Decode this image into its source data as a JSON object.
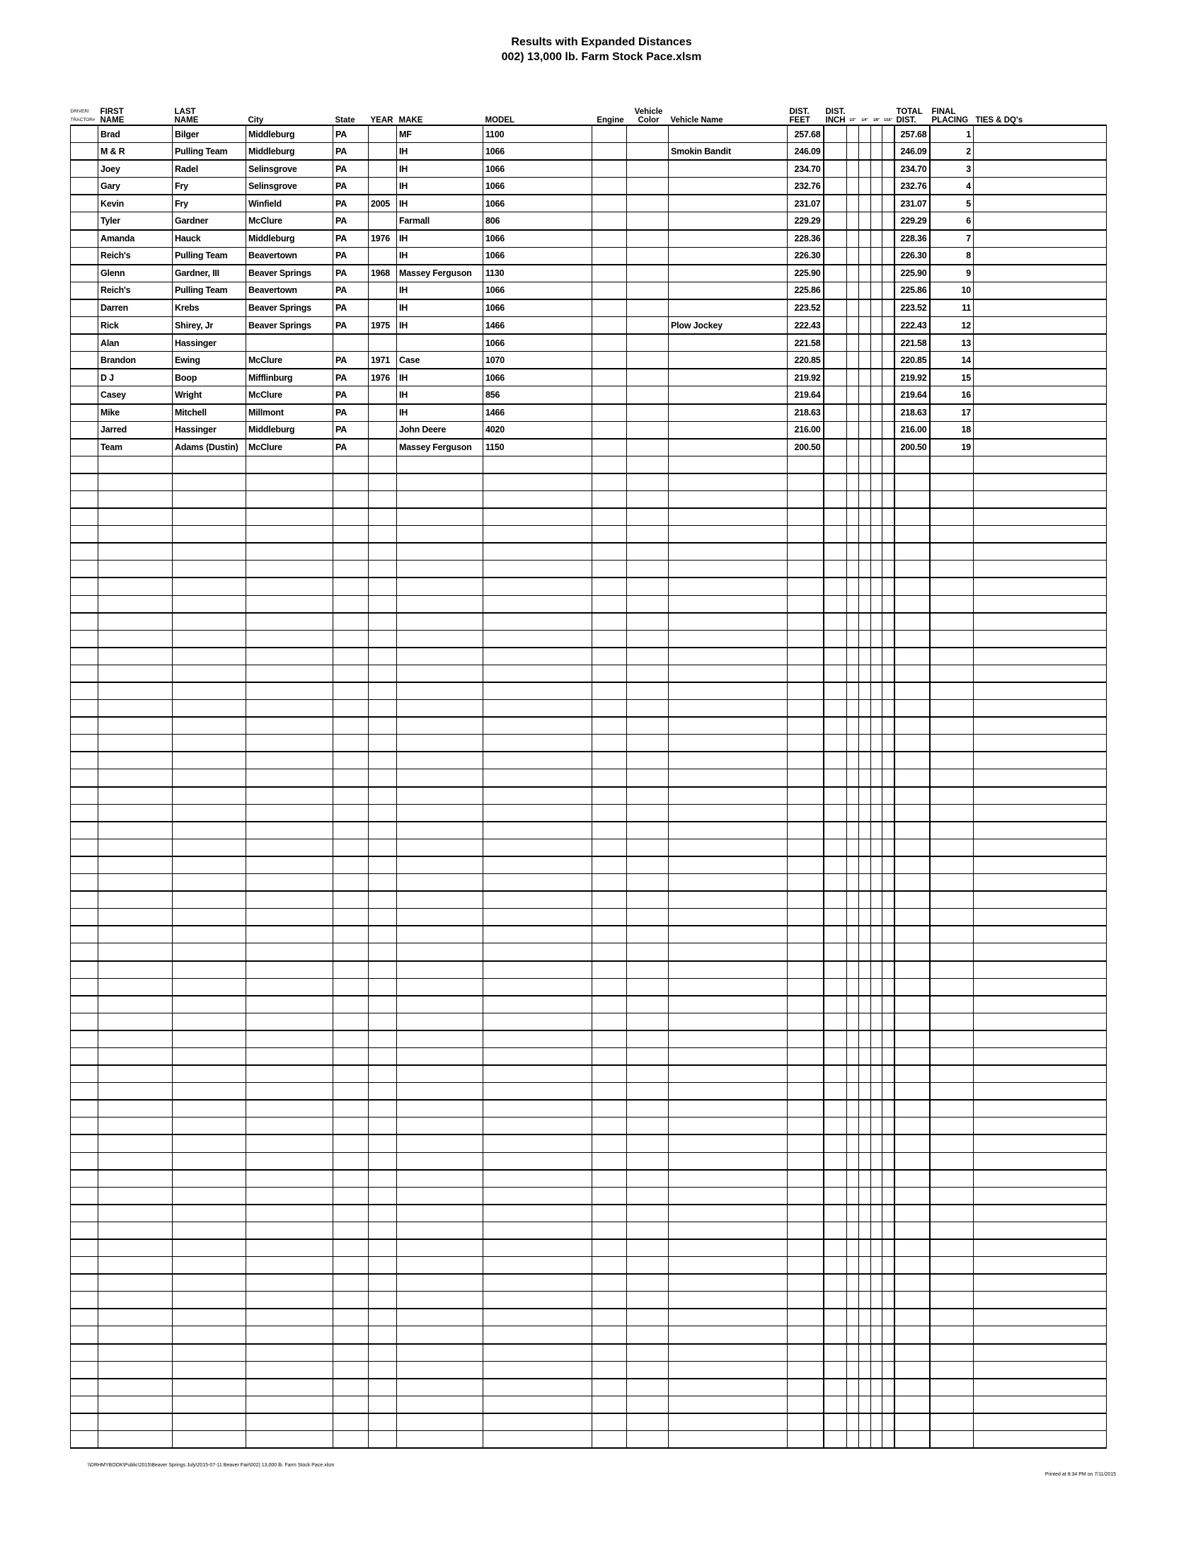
{
  "title": "Results with Expanded Distances",
  "subtitle": "002) 13,000 lb. Farm Stock Pace.xlsm",
  "headers": {
    "driver_line1": "DRIVER/",
    "driver_line2": "TRACTOR#",
    "first_line1": "FIRST",
    "first_line2": "NAME",
    "last_line1": "LAST",
    "last_line2": "NAME",
    "city": "City",
    "state": "State",
    "year": "YEAR",
    "make": "MAKE",
    "model": "MODEL",
    "engine": "Engine",
    "color_line1": "Vehicle",
    "color_line2": "Color",
    "vehicle_name": "Vehicle Name",
    "feet_line1": "DIST.",
    "feet_line2": "FEET",
    "inch_line1": "DIST.",
    "inch_line2": "INCH",
    "half": "1/2\"",
    "quarter": "1/4\"",
    "eighth": "1/8\"",
    "sixteenth": "1/16\"",
    "total_line1": "TOTAL",
    "total_line2": "DIST.",
    "placing_line1": "FINAL",
    "placing_line2": "PLACING",
    "ties": "TIES & DQ's"
  },
  "rows": [
    {
      "first": "Brad",
      "last": "Bilger",
      "city": "Middleburg",
      "state": "PA",
      "year": "",
      "make": "MF",
      "model": "1100",
      "vehicle_name": "",
      "feet": "257.68",
      "total": "257.68",
      "placing": "1"
    },
    {
      "first": "M & R",
      "last": "Pulling Team",
      "city": "Middleburg",
      "state": "PA",
      "year": "",
      "make": "IH",
      "model": "1066",
      "vehicle_name": "Smokin Bandit",
      "feet": "246.09",
      "total": "246.09",
      "placing": "2"
    },
    {
      "first": "Joey",
      "last": "Radel",
      "city": "Selinsgrove",
      "state": "PA",
      "year": "",
      "make": "IH",
      "model": "1066",
      "vehicle_name": "",
      "feet": "234.70",
      "total": "234.70",
      "placing": "3"
    },
    {
      "first": "Gary",
      "last": "Fry",
      "city": "Selinsgrove",
      "state": "PA",
      "year": "",
      "make": "IH",
      "model": "1066",
      "vehicle_name": "",
      "feet": "232.76",
      "total": "232.76",
      "placing": "4"
    },
    {
      "first": "Kevin",
      "last": "Fry",
      "city": "Winfield",
      "state": "PA",
      "year": "2005",
      "make": "IH",
      "model": "1066",
      "vehicle_name": "",
      "feet": "231.07",
      "total": "231.07",
      "placing": "5"
    },
    {
      "first": "Tyler",
      "last": "Gardner",
      "city": "McClure",
      "state": "PA",
      "year": "",
      "make": "Farmall",
      "model": "806",
      "vehicle_name": "",
      "feet": "229.29",
      "total": "229.29",
      "placing": "6"
    },
    {
      "first": "Amanda",
      "last": "Hauck",
      "city": "Middleburg",
      "state": "PA",
      "year": "1976",
      "make": "IH",
      "model": "1066",
      "vehicle_name": "",
      "feet": "228.36",
      "total": "228.36",
      "placing": "7"
    },
    {
      "first": "Reich's",
      "last": "Pulling Team",
      "city": "Beavertown",
      "state": "PA",
      "year": "",
      "make": "IH",
      "model": "1066",
      "vehicle_name": "",
      "feet": "226.30",
      "total": "226.30",
      "placing": "8"
    },
    {
      "first": "Glenn",
      "last": "Gardner, III",
      "city": "Beaver Springs",
      "state": "PA",
      "year": "1968",
      "make": "Massey Ferguson",
      "model": "1130",
      "vehicle_name": "",
      "feet": "225.90",
      "total": "225.90",
      "placing": "9"
    },
    {
      "first": "Reich's",
      "last": "Pulling Team",
      "city": "Beavertown",
      "state": "PA",
      "year": "",
      "make": "IH",
      "model": "1066",
      "vehicle_name": "",
      "feet": "225.86",
      "total": "225.86",
      "placing": "10"
    },
    {
      "first": "Darren",
      "last": "Krebs",
      "city": "Beaver Springs",
      "state": "PA",
      "year": "",
      "make": "IH",
      "model": "1066",
      "vehicle_name": "",
      "feet": "223.52",
      "total": "223.52",
      "placing": "11"
    },
    {
      "first": "Rick",
      "last": "Shirey, Jr",
      "city": "Beaver Springs",
      "state": "PA",
      "year": "1975",
      "make": "IH",
      "model": "1466",
      "vehicle_name": "Plow Jockey",
      "feet": "222.43",
      "total": "222.43",
      "placing": "12"
    },
    {
      "first": "Alan",
      "last": "Hassinger",
      "city": "",
      "state": "",
      "year": "",
      "make": "",
      "model": "1066",
      "vehicle_name": "",
      "feet": "221.58",
      "total": "221.58",
      "placing": "13"
    },
    {
      "first": "Brandon",
      "last": "Ewing",
      "city": "McClure",
      "state": "PA",
      "year": "1971",
      "make": "Case",
      "model": "1070",
      "vehicle_name": "",
      "feet": "220.85",
      "total": "220.85",
      "placing": "14"
    },
    {
      "first": "D J",
      "last": "Boop",
      "city": "Mifflinburg",
      "state": "PA",
      "year": "1976",
      "make": "IH",
      "model": "1066",
      "vehicle_name": "",
      "feet": "219.92",
      "total": "219.92",
      "placing": "15"
    },
    {
      "first": "Casey",
      "last": "Wright",
      "city": "McClure",
      "state": "PA",
      "year": "",
      "make": "IH",
      "model": "856",
      "vehicle_name": "",
      "feet": "219.64",
      "total": "219.64",
      "placing": "16"
    },
    {
      "first": "Mike",
      "last": "Mitchell",
      "city": "Millmont",
      "state": "PA",
      "year": "",
      "make": "IH",
      "model": "1466",
      "vehicle_name": "",
      "feet": "218.63",
      "total": "218.63",
      "placing": "17"
    },
    {
      "first": "Jarred",
      "last": "Hassinger",
      "city": "Middleburg",
      "state": "PA",
      "year": "",
      "make": "John Deere",
      "model": "4020",
      "vehicle_name": "",
      "feet": "216.00",
      "total": "216.00",
      "placing": "18"
    },
    {
      "first": "Team",
      "last": "Adams (Dustin)",
      "city": "McClure",
      "state": "PA",
      "year": "",
      "make": "Massey Ferguson",
      "model": "1150",
      "vehicle_name": "",
      "feet": "200.50",
      "total": "200.50",
      "placing": "19"
    }
  ],
  "footer": {
    "path": "\\\\DRHMYBOOK\\Public\\2015\\Beaver Springs July\\2015-07-11 Beaver Fair\\002) 13,000 lb. Farm Stock Pace.xlsm",
    "printed": "Printed at 8:34 PM on 7/11/2015"
  }
}
